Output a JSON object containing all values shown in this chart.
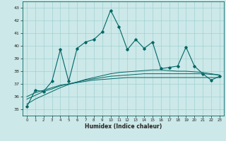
{
  "xlabel": "Humidex (Indice chaleur)",
  "bg_color": "#cce8e8",
  "grid_color": "#99cccc",
  "line_color": "#006666",
  "xlim": [
    -0.5,
    23.5
  ],
  "ylim": [
    34.5,
    43.5
  ],
  "yticks": [
    35,
    36,
    37,
    38,
    39,
    40,
    41,
    42,
    43
  ],
  "xticks": [
    0,
    1,
    2,
    3,
    4,
    5,
    6,
    7,
    8,
    9,
    10,
    11,
    12,
    13,
    14,
    15,
    16,
    17,
    18,
    19,
    20,
    21,
    22,
    23
  ],
  "main_y": [
    35.2,
    36.5,
    36.4,
    37.2,
    39.7,
    37.2,
    39.8,
    40.3,
    40.5,
    41.1,
    42.8,
    41.5,
    39.7,
    40.5,
    39.8,
    40.3,
    38.2,
    38.3,
    38.4,
    39.9,
    38.4,
    37.8,
    37.3,
    37.6
  ],
  "smooth1_y": [
    36.0,
    36.3,
    36.5,
    36.7,
    36.9,
    37.0,
    37.1,
    37.2,
    37.3,
    37.35,
    37.4,
    37.45,
    37.5,
    37.5,
    37.5,
    37.5,
    37.5,
    37.5,
    37.5,
    37.5,
    37.5,
    37.5,
    37.5,
    37.5
  ],
  "smooth2_y": [
    35.8,
    36.1,
    36.4,
    36.6,
    36.85,
    37.0,
    37.15,
    37.3,
    37.4,
    37.5,
    37.6,
    37.65,
    37.7,
    37.75,
    37.8,
    37.8,
    37.8,
    37.8,
    37.8,
    37.8,
    37.8,
    37.8,
    37.75,
    37.7
  ],
  "smooth3_y": [
    35.4,
    35.8,
    36.1,
    36.4,
    36.7,
    36.95,
    37.15,
    37.35,
    37.5,
    37.65,
    37.8,
    37.9,
    37.95,
    38.0,
    38.05,
    38.1,
    38.1,
    38.05,
    38.0,
    38.0,
    37.95,
    37.9,
    37.8,
    37.7
  ]
}
